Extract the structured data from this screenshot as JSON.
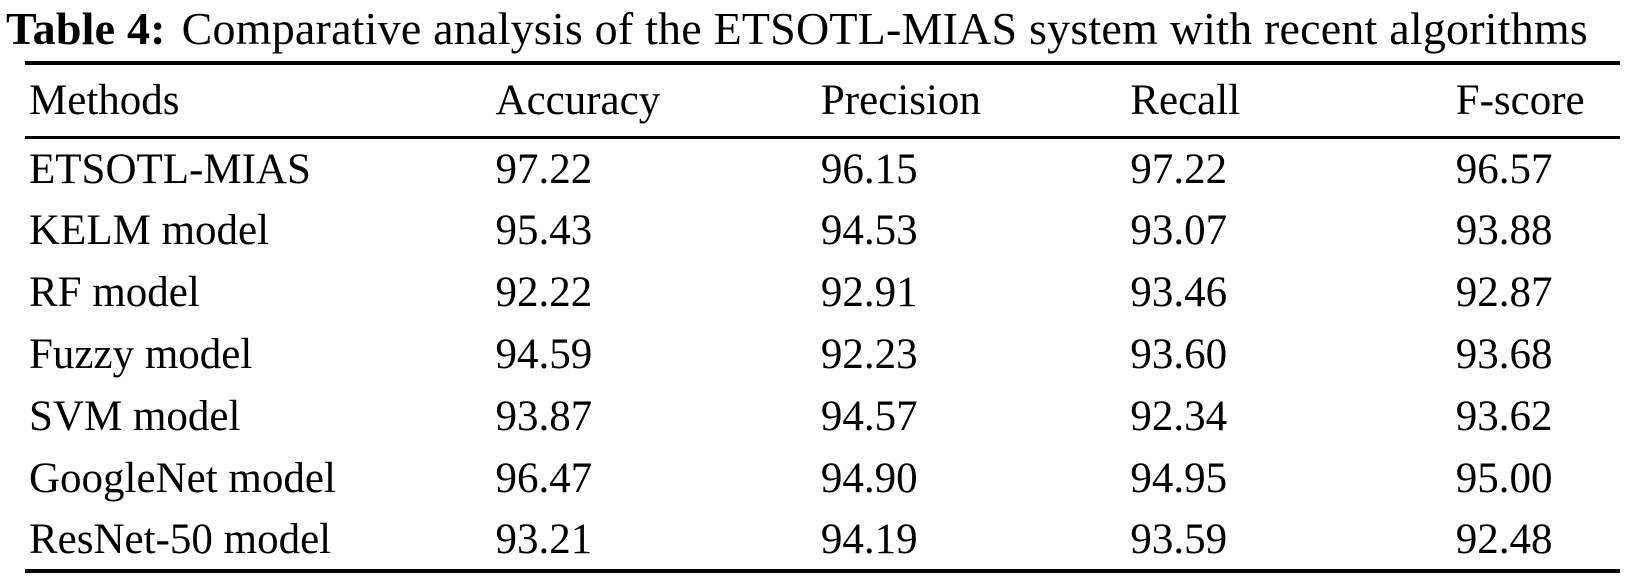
{
  "title": {
    "label": "Table 4:",
    "text": "Comparative analysis of the ETSOTL-MIAS system with recent algorithms"
  },
  "table": {
    "columns": [
      "Methods",
      "Accuracy",
      "Precision",
      "Recall",
      "F-score"
    ],
    "rows": [
      {
        "method": "ETSOTL-MIAS",
        "accuracy": "97.22",
        "precision": "96.15",
        "recall": "97.22",
        "fscore": "96.57"
      },
      {
        "method": "KELM model",
        "accuracy": "95.43",
        "precision": "94.53",
        "recall": "93.07",
        "fscore": "93.88"
      },
      {
        "method": "RF model",
        "accuracy": "92.22",
        "precision": "92.91",
        "recall": "93.46",
        "fscore": "92.87"
      },
      {
        "method": "Fuzzy model",
        "accuracy": "94.59",
        "precision": "92.23",
        "recall": "93.60",
        "fscore": "93.68"
      },
      {
        "method": "SVM model",
        "accuracy": "93.87",
        "precision": "94.57",
        "recall": "92.34",
        "fscore": "93.62"
      },
      {
        "method": "GoogleNet model",
        "accuracy": "96.47",
        "precision": "94.90",
        "recall": "94.95",
        "fscore": "95.00"
      },
      {
        "method": "ResNet-50 model",
        "accuracy": "93.21",
        "precision": "94.19",
        "recall": "93.59",
        "fscore": "92.48"
      }
    ]
  },
  "chart_data": {
    "type": "table",
    "title": "Table 4: Comparative analysis of the ETSOTL-MIAS system with recent algorithms",
    "categories": [
      "ETSOTL-MIAS",
      "KELM model",
      "RF model",
      "Fuzzy model",
      "SVM model",
      "GoogleNet model",
      "ResNet-50 model"
    ],
    "series": [
      {
        "name": "Accuracy",
        "values": [
          97.22,
          95.43,
          92.22,
          94.59,
          93.87,
          96.47,
          93.21
        ]
      },
      {
        "name": "Precision",
        "values": [
          96.15,
          94.53,
          92.91,
          92.23,
          94.57,
          94.9,
          94.19
        ]
      },
      {
        "name": "Recall",
        "values": [
          97.22,
          93.07,
          93.46,
          93.6,
          92.34,
          94.95,
          93.59
        ]
      },
      {
        "name": "F-score",
        "values": [
          96.57,
          93.88,
          92.87,
          93.68,
          93.62,
          95.0,
          92.48
        ]
      }
    ]
  },
  "colors": {
    "text": "#000000",
    "background": "#ffffff",
    "rule": "#000000"
  }
}
